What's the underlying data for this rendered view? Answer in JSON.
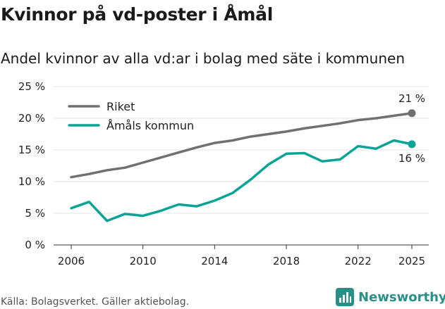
{
  "header": {
    "title": "Kvinnor på vd-poster i Åmål",
    "subtitle": "Andel kvinnor av alla vd:ar i bolag med säte i kommunen"
  },
  "footer": {
    "source": "Källa: Bolagsverket. Gäller aktiebolag.",
    "brand": "Newsworthy"
  },
  "colors": {
    "riket": "#707070",
    "amal": "#0aa396",
    "grid": "#e3e3e3",
    "axis": "#333333"
  },
  "chart_data": {
    "type": "line",
    "x": [
      2006,
      2007,
      2008,
      2009,
      2010,
      2011,
      2012,
      2013,
      2014,
      2015,
      2016,
      2017,
      2018,
      2019,
      2020,
      2021,
      2022,
      2023,
      2024,
      2025
    ],
    "series": [
      {
        "name": "Riket",
        "values": [
          10.7,
          11.2,
          11.8,
          12.2,
          13.0,
          13.8,
          14.6,
          15.4,
          16.1,
          16.5,
          17.1,
          17.5,
          17.9,
          18.4,
          18.8,
          19.2,
          19.7,
          20.0,
          20.4,
          20.8
        ],
        "end_label": "21 %"
      },
      {
        "name": "Åmåls kommun",
        "values": [
          5.8,
          6.8,
          3.8,
          4.9,
          4.6,
          5.4,
          6.4,
          6.1,
          7.0,
          8.2,
          10.3,
          12.7,
          14.4,
          14.5,
          13.2,
          13.5,
          15.6,
          15.2,
          16.5,
          15.9
        ],
        "end_label": "16 %"
      }
    ],
    "xticks": [
      "2006",
      "2010",
      "2014",
      "2018",
      "2022",
      "2025"
    ],
    "xtick_values": [
      2006,
      2010,
      2014,
      2018,
      2022,
      2025
    ],
    "yticks": [
      "0 %",
      "5 %",
      "10 %",
      "15 %",
      "20 %",
      "25 %"
    ],
    "ytick_values": [
      0,
      5,
      10,
      15,
      20,
      25
    ],
    "xlim": [
      2006,
      2025
    ],
    "ylim": [
      0,
      25
    ],
    "legend": [
      "Riket",
      "Åmåls kommun"
    ],
    "legend_position": "top-left",
    "title": "Kvinnor på vd-poster i Åmål",
    "xlabel": "",
    "ylabel": ""
  }
}
